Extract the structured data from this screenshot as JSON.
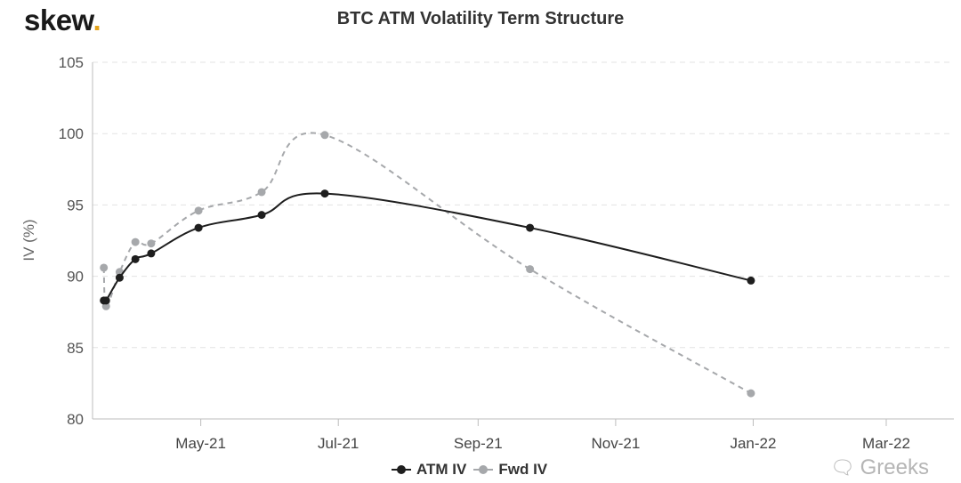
{
  "header": {
    "logo_text": "skew",
    "logo_dot": "."
  },
  "watermark": {
    "text": "Greeks",
    "icon": "chat-bubbles-icon"
  },
  "chart_data": {
    "type": "line",
    "title": "BTC ATM Volatility Term Structure",
    "ylabel": "IV (%)",
    "xlabel": "",
    "ylim": [
      80,
      105
    ],
    "yticks": [
      80,
      85,
      90,
      95,
      100,
      105
    ],
    "xlim": [
      "2021-03-14",
      "2022-03-31"
    ],
    "xticks": [
      {
        "date": "2021-05-01",
        "label": "May-21"
      },
      {
        "date": "2021-07-01",
        "label": "Jul-21"
      },
      {
        "date": "2021-09-01",
        "label": "Sep-21"
      },
      {
        "date": "2021-11-01",
        "label": "Nov-21"
      },
      {
        "date": "2022-01-01",
        "label": "Jan-22"
      },
      {
        "date": "2022-03-01",
        "label": "Mar-22"
      }
    ],
    "grid": true,
    "legend_position": "bottom",
    "series": [
      {
        "name": "ATM IV",
        "color": "#1e1e1e",
        "dashed": false,
        "points": [
          {
            "x": "2021-03-19",
            "y": 88.3
          },
          {
            "x": "2021-03-20",
            "y": 88.3
          },
          {
            "x": "2021-03-26",
            "y": 89.9
          },
          {
            "x": "2021-04-02",
            "y": 91.2
          },
          {
            "x": "2021-04-09",
            "y": 91.6
          },
          {
            "x": "2021-04-30",
            "y": 93.4
          },
          {
            "x": "2021-05-28",
            "y": 94.3
          },
          {
            "x": "2021-06-25",
            "y": 95.8
          },
          {
            "x": "2021-09-24",
            "y": 93.4
          },
          {
            "x": "2021-12-31",
            "y": 89.7
          }
        ]
      },
      {
        "name": "Fwd IV",
        "color": "#a6a8ab",
        "dashed": true,
        "points": [
          {
            "x": "2021-03-19",
            "y": 90.6
          },
          {
            "x": "2021-03-20",
            "y": 87.9
          },
          {
            "x": "2021-03-26",
            "y": 90.3
          },
          {
            "x": "2021-04-02",
            "y": 92.4
          },
          {
            "x": "2021-04-09",
            "y": 92.3
          },
          {
            "x": "2021-04-30",
            "y": 94.6
          },
          {
            "x": "2021-05-28",
            "y": 95.9
          },
          {
            "x": "2021-06-25",
            "y": 99.9
          },
          {
            "x": "2021-09-24",
            "y": 90.5
          },
          {
            "x": "2021-12-31",
            "y": 81.8
          }
        ]
      }
    ]
  }
}
